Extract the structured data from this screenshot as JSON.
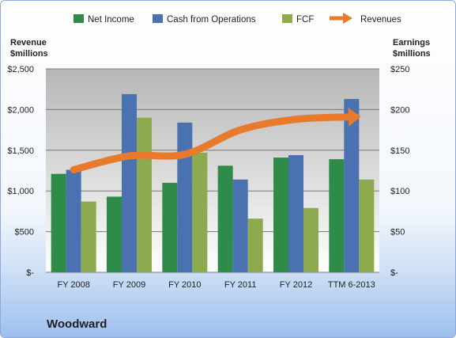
{
  "chart_data": {
    "type": "bar",
    "company": "Woodward",
    "categories": [
      "FY 2008",
      "FY 2009",
      "FY 2010",
      "FY 2011",
      "FY 2012",
      "TTM 6-2013"
    ],
    "series": [
      {
        "name": "Net Income",
        "axis": "right",
        "color": "#2e8b4a",
        "values": [
          121,
          93,
          110,
          131,
          141,
          139
        ]
      },
      {
        "name": "Cash from Operations",
        "axis": "right",
        "color": "#4a72b0",
        "values": [
          126,
          219,
          184,
          114,
          144,
          213
        ]
      },
      {
        "name": "FCF",
        "axis": "right",
        "color": "#8eaa4e",
        "values": [
          87,
          190,
          147,
          66,
          79,
          114
        ]
      },
      {
        "name": "Revenues",
        "axis": "left",
        "type": "line-arrow",
        "color": "#e87a2c",
        "values": [
          1260,
          1430,
          1450,
          1750,
          1880,
          1910
        ]
      }
    ],
    "left_axis": {
      "title_line1": "Revenue",
      "title_line2": "$millions",
      "ylim": [
        0,
        2500
      ],
      "ticks": [
        0,
        500,
        1000,
        1500,
        2000,
        2500
      ],
      "tick_labels": [
        "$-",
        "$500",
        "$1,000",
        "$1,500",
        "$2,000",
        "$2,500"
      ]
    },
    "right_axis": {
      "title_line1": "Earnings",
      "title_line2": "$millions",
      "ylim": [
        0,
        250
      ],
      "ticks": [
        0,
        50,
        100,
        150,
        200,
        250
      ],
      "tick_labels": [
        "$-",
        "$50",
        "$100",
        "$150",
        "$200",
        "$250"
      ]
    },
    "legend_position": "top",
    "grid": true
  }
}
